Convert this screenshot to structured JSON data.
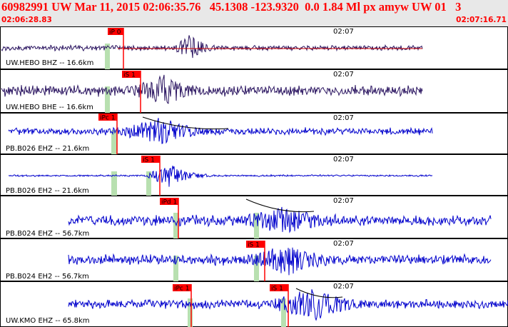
{
  "header": {
    "title": "60982991 UW Mar 11, 2015 02:06:35.76   45.1308 -123.9320  0.0 1.84 Ml px amyw UW 01   3",
    "start_time": "02:06:28.83",
    "end_time": "02:07:16.71"
  },
  "colors": {
    "header_text": "#ff0000",
    "header_bg": "#e8e8e8",
    "trace_primary": "#2a1460",
    "trace_secondary": "#0000cc",
    "pick_flag": "#ff0000",
    "pick_window": "#b8e0b0",
    "panel_border": "#000000"
  },
  "panels": [
    {
      "station": "UW.HEBO BHZ -- 16.6km",
      "tick": "02:07",
      "color": "trace_primary",
      "picks": [
        {
          "label": "iP 0"
        }
      ]
    },
    {
      "station": "UW.HEBO BHE -- 16.6km",
      "tick": "02:07",
      "color": "trace_primary",
      "picks": [
        {
          "label": "iS 1"
        }
      ]
    },
    {
      "station": "PB.B026 EHZ -- 21.6km",
      "tick": "02:07",
      "color": "trace_secondary",
      "picks": [
        {
          "label": "iPc 1"
        }
      ]
    },
    {
      "station": "PB.B026 EH2 -- 21.6km",
      "tick": "02:07",
      "color": "trace_secondary",
      "picks": [
        {
          "label": "iS 1"
        }
      ]
    },
    {
      "station": "PB.B024 EHZ -- 56.7km",
      "tick": "02:07",
      "color": "trace_secondary",
      "picks": [
        {
          "label": "iPd 1"
        }
      ]
    },
    {
      "station": "PB.B024 EH2 -- 56.7km",
      "tick": "02:07",
      "color": "trace_secondary",
      "picks": [
        {
          "label": "iS 1"
        }
      ]
    },
    {
      "station": "UW.KMO EHZ -- 65.8km",
      "tick": "02:07",
      "color": "trace_secondary",
      "picks": [
        {
          "label": "iPc 1"
        },
        {
          "label": "iS 1"
        }
      ]
    }
  ]
}
